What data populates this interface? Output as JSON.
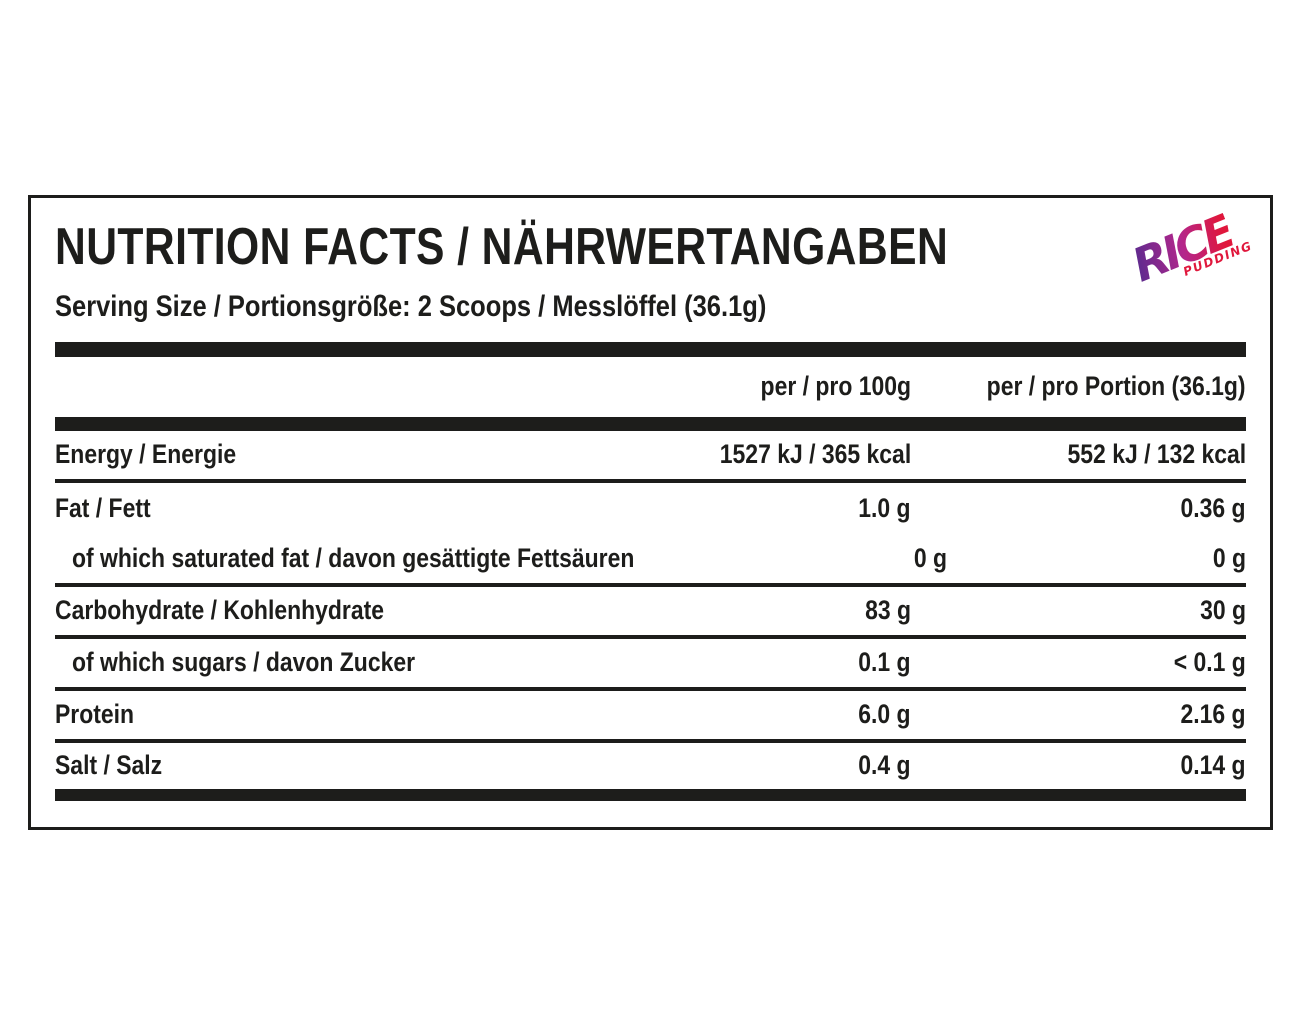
{
  "page": {
    "background": "#ffffff",
    "text_color": "#1d1d1b"
  },
  "label": {
    "title": "NUTRITION FACTS / NÄHRWERTANGABEN",
    "serving_line": "Serving Size / Portionsgröße: 2 Scoops / Messlöffel (36.1g)",
    "logo": {
      "brand": "RICE",
      "sub_brand": "PUDDING",
      "gradient_start": "#5e2b8e",
      "gradient_mid": "#b3268c",
      "gradient_end": "#e0173c",
      "sub_color": "#e0173c"
    },
    "table": {
      "columns": [
        {
          "label": "per / pro 100g"
        },
        {
          "label": "per / pro Portion (36.1g)"
        }
      ],
      "rows": [
        {
          "label": "Energy / Energie",
          "per_100g": "1527 kJ / 365 kcal",
          "per_portion": "552 kJ / 132 kcal",
          "indent": false,
          "divider": true
        },
        {
          "label": "Fat / Fett",
          "per_100g": "1.0 g",
          "per_portion": "0.36 g",
          "indent": false,
          "divider": false
        },
        {
          "label": "of which saturated fat / davon gesättigte Fettsäuren",
          "per_100g": "0 g",
          "per_portion": "0 g",
          "indent": true,
          "divider": true
        },
        {
          "label": "Carbohydrate / Kohlenhydrate",
          "per_100g": "83 g",
          "per_portion": "30 g",
          "indent": false,
          "divider": true
        },
        {
          "label": "of which sugars / davon Zucker",
          "per_100g": "0.1 g",
          "per_portion": "< 0.1 g",
          "indent": true,
          "divider": true
        },
        {
          "label": "Protein",
          "per_100g": "6.0 g",
          "per_portion": "2.16 g",
          "indent": false,
          "divider": true
        },
        {
          "label": "Salt / Salz",
          "per_100g": "0.4 g",
          "per_portion": "0.14 g",
          "indent": false,
          "divider": false
        }
      ]
    }
  }
}
